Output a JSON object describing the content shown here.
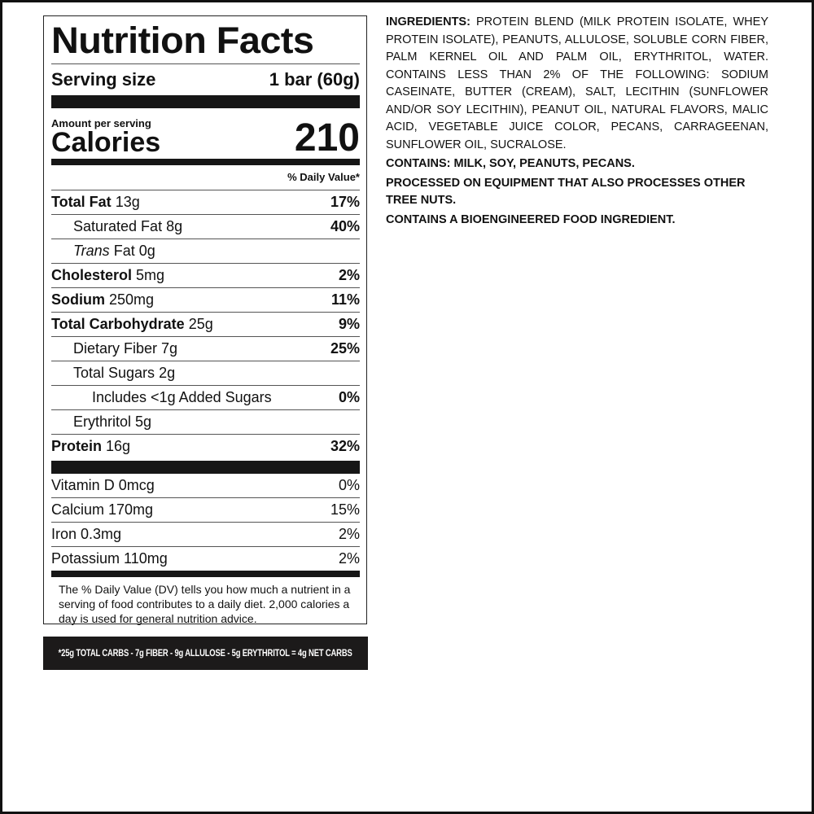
{
  "label": {
    "title": "Nutrition Facts",
    "serving_size_label": "Serving size",
    "serving_size_value": "1 bar (60g)",
    "amount_per_serving": "Amount per serving",
    "calories_label": "Calories",
    "calories_value": "210",
    "dv_header": "% Daily Value*",
    "nutrients": [
      {
        "name": "Total Fat",
        "amount": "13g",
        "dv": "17%"
      },
      {
        "name": "Saturated Fat",
        "amount": "8g",
        "dv": "40%"
      },
      {
        "name": "Trans",
        "suffix": "Fat 0g",
        "dv": ""
      },
      {
        "name": "Cholesterol",
        "amount": "5mg",
        "dv": "2%"
      },
      {
        "name": "Sodium",
        "amount": "250mg",
        "dv": "11%"
      },
      {
        "name": "Total Carbohydrate",
        "amount": "25g",
        "dv": "9%"
      },
      {
        "name": "Dietary Fiber",
        "amount": "7g",
        "dv": "25%"
      },
      {
        "name": "Total Sugars",
        "amount": "2g",
        "dv": ""
      },
      {
        "name": "Includes <1g Added Sugars",
        "amount": "",
        "dv": "0%"
      },
      {
        "name": "Erythritol",
        "amount": "5g",
        "dv": ""
      },
      {
        "name": "Protein",
        "amount": "16g",
        "dv": "32%"
      }
    ],
    "vitamins": [
      {
        "name": "Vitamin D 0mcg",
        "dv": "0%"
      },
      {
        "name": "Calcium 170mg",
        "dv": "15%"
      },
      {
        "name": "Iron 0.3mg",
        "dv": "2%"
      },
      {
        "name": "Potassium 110mg",
        "dv": "2%"
      }
    ],
    "footnote": "The % Daily Value (DV) tells you how much a nutrient in a serving of food contributes to a daily diet. 2,000 calories a day is used for general nutrition advice."
  },
  "net_carbs": "*25g TOTAL CARBS - 7g FIBER - 9g ALLULOSE - 5g ERYTHRITOL = 4g NET CARBS",
  "ingredients": {
    "heading": "INGREDIENTS:",
    "text": " PROTEIN BLEND (MILK PROTEIN ISOLATE, WHEY PROTEIN ISOLATE), PEANUTS, ALLULOSE, SOLUBLE CORN FIBER, PALM KERNEL OIL AND PALM OIL, ERYTHRITOL, WATER. CONTAINS LESS THAN 2% OF THE FOLLOWING: SODIUM CASEINATE, BUTTER (CREAM), SALT, LECITHIN (SUNFLOWER AND/OR SOY LECITHIN), PEANUT OIL, NATURAL FLAVORS, MALIC ACID, VEGETABLE JUICE COLOR, PECANS, CARRAGEENAN, SUNFLOWER OIL, SUCRALOSE.",
    "contains": "CONTAINS: MILK, SOY, PEANUTS, PECANS.",
    "processed": "PROCESSED ON EQUIPMENT THAT ALSO PROCESSES OTHER TREE NUTS.",
    "bioengineered": "CONTAINS A BIOENGINEERED FOOD INGREDIENT."
  }
}
